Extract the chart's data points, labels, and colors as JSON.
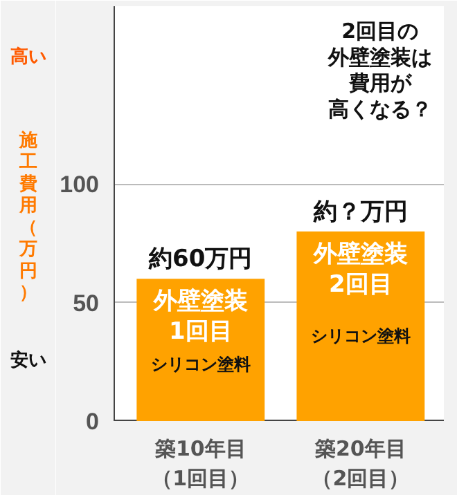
{
  "chart_data": {
    "type": "bar",
    "categories": [
      "築10年目（1回目）",
      "築20年目（2回目）"
    ],
    "values": [
      60,
      80
    ],
    "colors": [
      "#ffa200",
      "#ffa200"
    ],
    "value_labels": [
      "約60万円",
      "約？万円"
    ],
    "ylabel": "施工費用（万円）",
    "ylim": [
      0,
      175
    ],
    "yticks": [
      0,
      50,
      100
    ],
    "grid": "y",
    "annotations": [
      "2回目の外壁塗装は費用が高くなる？",
      "高い",
      "安い",
      "外壁塗装1回目",
      "シリコン塗料",
      "外壁塗装2回目",
      "シリコン塗料"
    ]
  }
}
